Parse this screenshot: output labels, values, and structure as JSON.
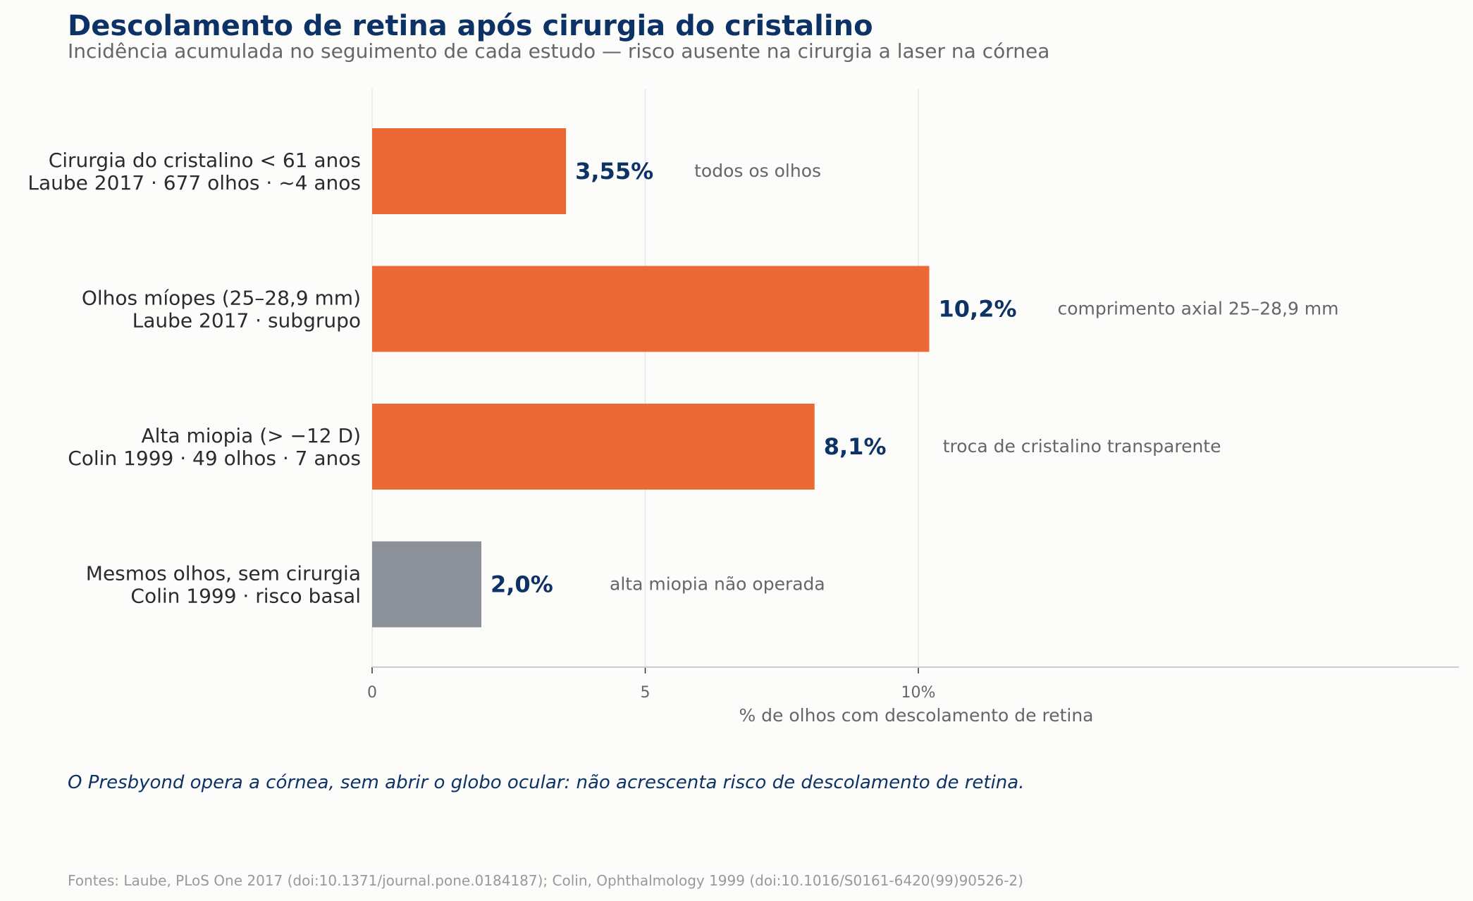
{
  "chart_data": {
    "type": "bar",
    "orientation": "horizontal",
    "title": "Descolamento de retina após cirurgia do cristalino",
    "subtitle": "Incidência acumulada no seguimento de cada estudo — risco ausente na cirurgia a laser na córnea",
    "xlabel": "% de olhos com descolamento de retina",
    "xlim": [
      0,
      20
    ],
    "xticks": [
      {
        "value": 0,
        "label": "0"
      },
      {
        "value": 5,
        "label": "5"
      },
      {
        "value": 10,
        "label": "10%"
      }
    ],
    "grid": true,
    "categories": [
      {
        "line1": "Cirurgia do cristalino < 61 anos",
        "line2": "Laube 2017 · 677 olhos · ~4 anos"
      },
      {
        "line1": "Olhos míopes (25–28,9 mm)",
        "line2": "Laube 2017 · subgrupo"
      },
      {
        "line1": "Alta miopia (> −12 D)",
        "line2": "Colin 1999 · 49 olhos · 7 anos"
      },
      {
        "line1": "Mesmos olhos, sem cirurgia",
        "line2": "Colin 1999 · risco basal"
      }
    ],
    "values": [
      3.55,
      10.2,
      8.1,
      2.0
    ],
    "value_labels": [
      "3,55%",
      "10,2%",
      "8,1%",
      "2,0%"
    ],
    "notes": [
      "todos os olhos",
      "comprimento axial 25–28,9 mm",
      "troca de cristalino transparente",
      "alta miopia não operada"
    ],
    "colors": [
      "#eb6934",
      "#eb6934",
      "#eb6934",
      "#8c9098"
    ],
    "value_label_color": "#0d3366",
    "note_color": "#666666",
    "footnote": "O Presbyond opera a córnea, sem abrir o globo ocular: não acrescenta risco de descolamento de retina.",
    "source": "Fontes: Laube, PLoS One 2017 (doi:10.1371/journal.pone.0184187); Colin, Ophthalmology 1999 (doi:10.1016/S0161-6420(99)90526-2)"
  }
}
